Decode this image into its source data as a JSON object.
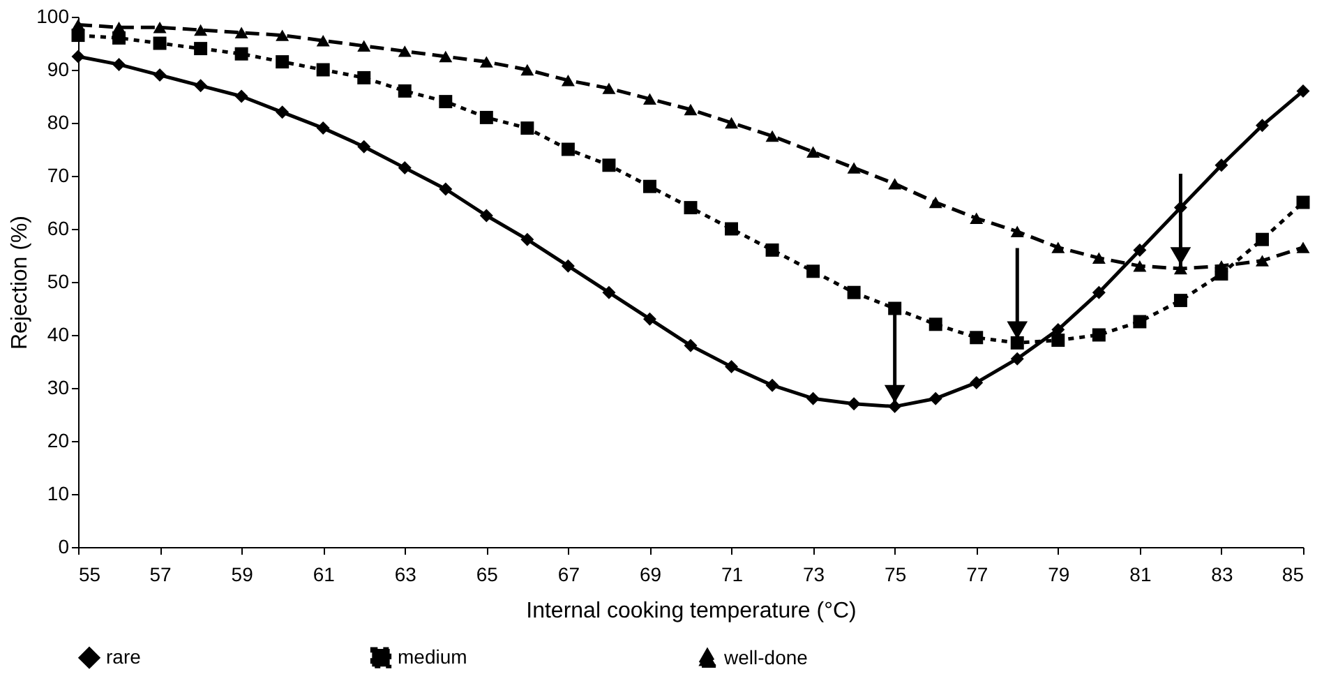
{
  "chart_data": {
    "type": "line",
    "xlabel": "Internal cooking temperature (°C)",
    "ylabel": "Rejection (%)",
    "x": [
      55,
      56,
      57,
      58,
      59,
      60,
      61,
      62,
      63,
      64,
      65,
      66,
      67,
      68,
      69,
      70,
      71,
      72,
      73,
      74,
      75,
      76,
      77,
      78,
      79,
      80,
      81,
      82,
      83,
      84,
      85
    ],
    "xlim": [
      55,
      85
    ],
    "xticks": [
      55,
      57,
      59,
      61,
      63,
      65,
      67,
      69,
      71,
      73,
      75,
      77,
      79,
      81,
      83,
      85
    ],
    "ylim": [
      0,
      100
    ],
    "yticks": [
      0,
      10,
      20,
      30,
      40,
      50,
      60,
      70,
      80,
      90,
      100
    ],
    "grid": false,
    "legend": "bottom",
    "series": [
      {
        "name": "rare",
        "color": "#000000",
        "marker": "diamond",
        "line_style": "solid",
        "values": [
          92.5,
          91,
          89,
          87,
          85,
          82,
          79,
          75.5,
          71.5,
          67.5,
          62.5,
          58,
          53,
          48,
          43,
          38,
          34,
          30.5,
          28,
          27,
          26.5,
          28,
          31,
          35.5,
          41,
          48,
          56,
          64,
          72,
          79.5,
          86
        ]
      },
      {
        "name": "medium",
        "color": "#000000",
        "marker": "square",
        "line_style": "dotted",
        "values": [
          96.5,
          96,
          95,
          94,
          93,
          91.5,
          90,
          88.5,
          86,
          84,
          81,
          79,
          75,
          72,
          68,
          64,
          60,
          56,
          52,
          48,
          45,
          42,
          39.5,
          38.5,
          39,
          40,
          42.5,
          46.5,
          51.5,
          58,
          65
        ]
      },
      {
        "name": "well-done",
        "color": "#000000",
        "marker": "triangle",
        "line_style": "dashed",
        "values": [
          98.5,
          98,
          98,
          97.5,
          97,
          96.5,
          95.5,
          94.5,
          93.5,
          92.5,
          91.5,
          90,
          88,
          86.5,
          84.5,
          82.5,
          80,
          77.5,
          74.5,
          71.5,
          68.5,
          65,
          62,
          59.5,
          56.5,
          54.5,
          53,
          52.5,
          53,
          54,
          56.5
        ]
      }
    ]
  }
}
